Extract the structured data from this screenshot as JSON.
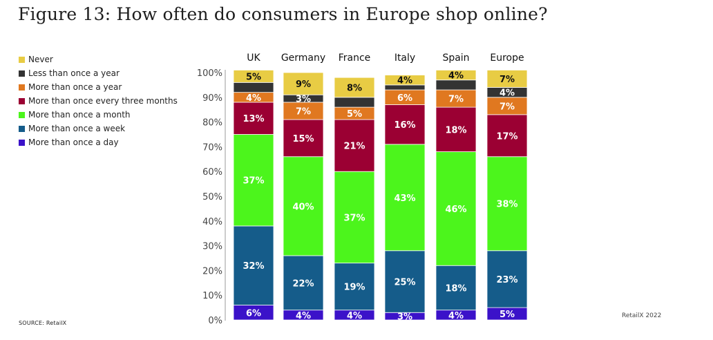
{
  "title": "Figure 13: How often do consumers in Europe shop online?",
  "source": "SOURCE: RetailX",
  "brand": "RetailX 2022",
  "chart_data": {
    "type": "bar",
    "stacked": true,
    "categories": [
      "UK",
      "Germany",
      "France",
      "Italy",
      "Spain",
      "Europe"
    ],
    "ylim": [
      0,
      100
    ],
    "y_ticks": [
      "0%",
      "10%",
      "20%",
      "30%",
      "40%",
      "50%",
      "60%",
      "70%",
      "80%",
      "90%",
      "100%"
    ],
    "legend_position": "top-left",
    "series": [
      {
        "name": "More than once a day",
        "color": "#3b12c9",
        "values": [
          6,
          4,
          4,
          3,
          4,
          5
        ],
        "labels": [
          "6%",
          "4%",
          "4%",
          "3%",
          "4%",
          "5%"
        ]
      },
      {
        "name": "More than once a week",
        "color": "#155c8a",
        "values": [
          32,
          22,
          19,
          25,
          18,
          23
        ],
        "labels": [
          "32%",
          "22%",
          "19%",
          "25%",
          "18%",
          "23%"
        ]
      },
      {
        "name": "More than once a month",
        "color": "#4cf51c",
        "values": [
          37,
          40,
          37,
          43,
          46,
          38
        ],
        "labels": [
          "37%",
          "40%",
          "37%",
          "43%",
          "46%",
          "38%"
        ]
      },
      {
        "name": "More than once every three months",
        "color": "#9b0033",
        "values": [
          13,
          15,
          21,
          16,
          18,
          17
        ],
        "labels": [
          "13%",
          "15%",
          "21%",
          "16%",
          "18%",
          "17%"
        ]
      },
      {
        "name": "More than once a year",
        "color": "#e07820",
        "values": [
          4,
          7,
          5,
          6,
          7,
          7
        ],
        "labels": [
          "4%",
          "7%",
          "5%",
          "6%",
          "7%",
          "7%"
        ]
      },
      {
        "name": "Less than once a year",
        "color": "#333333",
        "values": [
          4,
          3,
          4,
          2,
          4,
          4
        ],
        "labels": [
          "",
          "3%",
          "",
          "",
          "",
          "4%"
        ]
      },
      {
        "name": "Never",
        "color": "#e8cc44",
        "values": [
          5,
          9,
          8,
          4,
          4,
          7
        ],
        "labels": [
          "5%",
          "9%",
          "8%",
          "4%",
          "4%",
          "7%"
        ]
      }
    ]
  }
}
